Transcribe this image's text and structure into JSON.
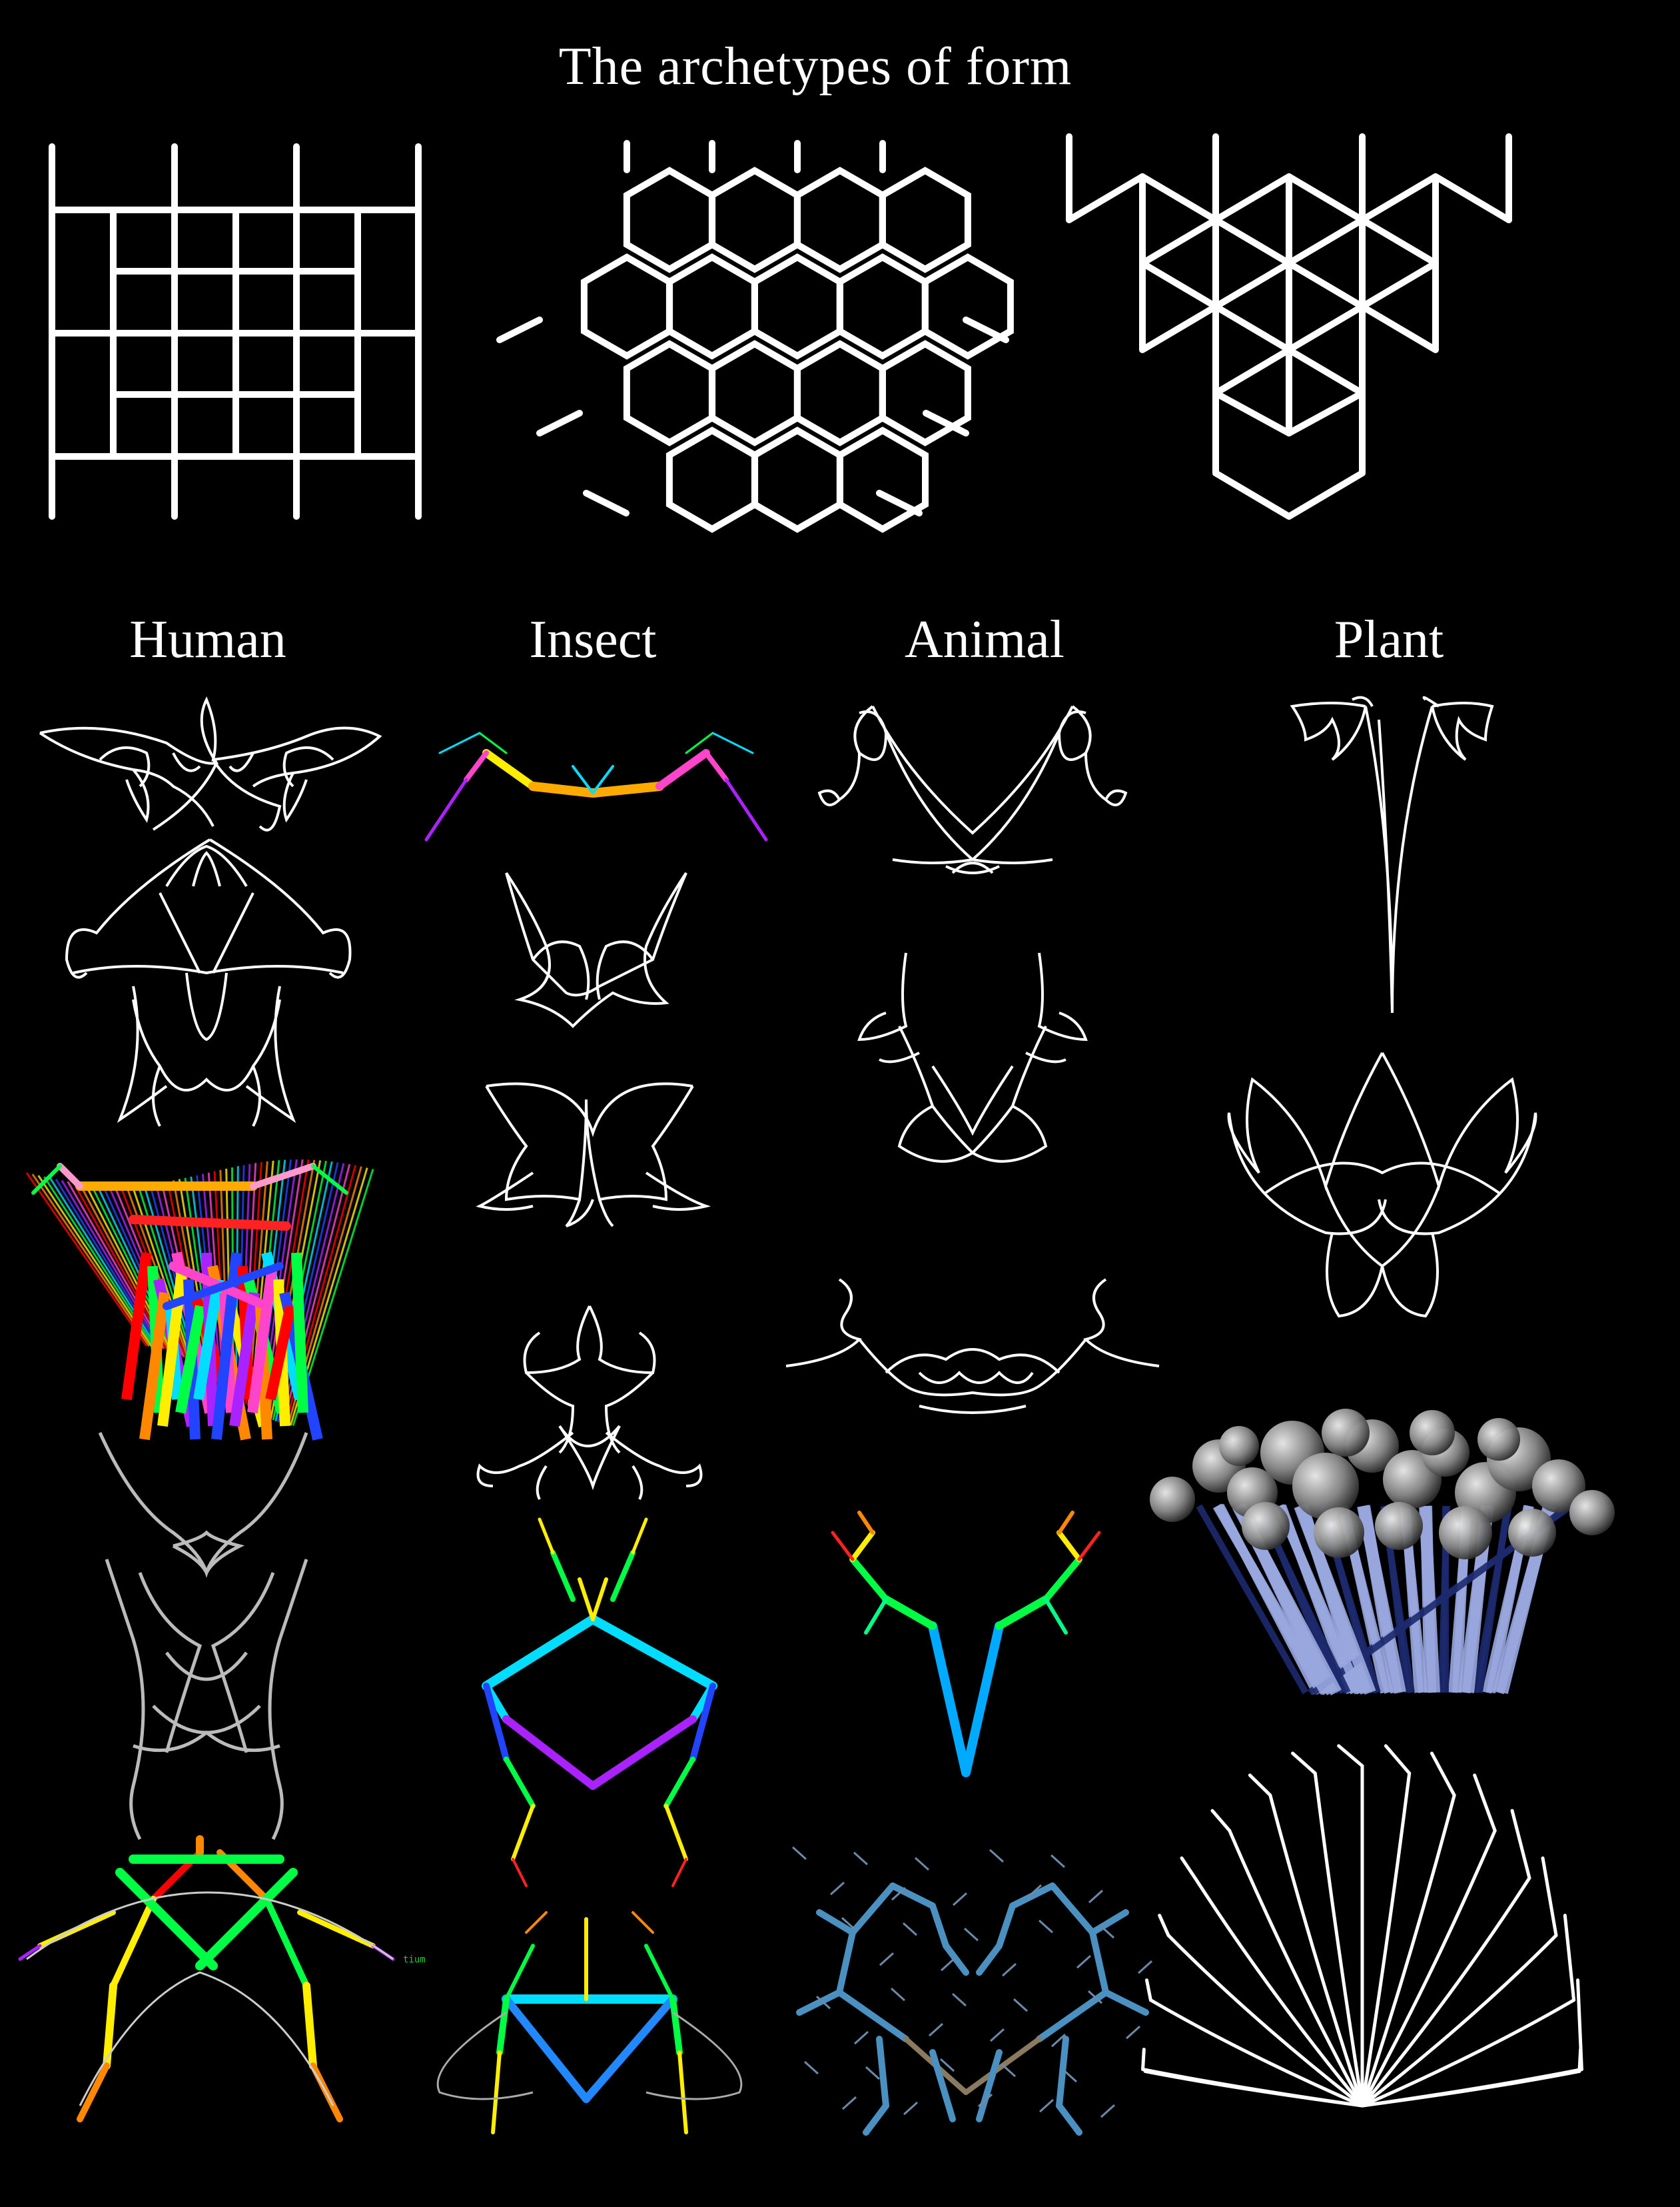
{
  "title": "The archetypes of form",
  "columns": {
    "human": "Human",
    "insect": "Insect",
    "animal": "Animal",
    "plant": "Plant"
  },
  "annotation": "tium",
  "colors": {
    "background": "#000000",
    "line": "#ffffff",
    "rainbow": [
      "#ff0000",
      "#ff8800",
      "#ffee00",
      "#00ff44",
      "#00ddff",
      "#2244ff",
      "#aa22ff",
      "#ff44cc"
    ],
    "steel_blue": "#4a90c0",
    "plant_blue": "#9aa8e0"
  },
  "archetypes": [
    "grid-icon",
    "hexagon-lattice-icon",
    "triangle-lattice-icon"
  ]
}
